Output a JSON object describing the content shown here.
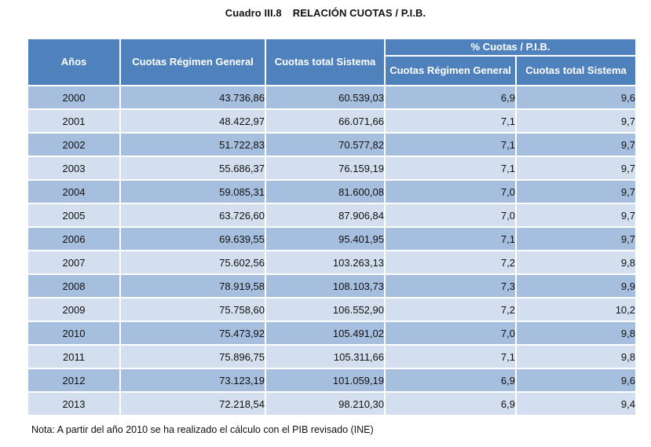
{
  "title": {
    "number": "Cuadro III.8",
    "text": "RELACIÓN CUOTAS / P.I.B."
  },
  "table": {
    "header": {
      "years": "Años",
      "cuotas_regimen_general": "Cuotas Régimen General",
      "cuotas_total_sistema": "Cuotas total Sistema",
      "group_pct_pib": "% Cuotas / P.I.B.",
      "pct_regimen_general": "Cuotas Régimen General",
      "pct_total_sistema": "Cuotas total Sistema"
    },
    "rows": [
      {
        "year": "2000",
        "crg": "43.736,86",
        "cts": "60.539,03",
        "prg": "6,9",
        "pts": "9,6"
      },
      {
        "year": "2001",
        "crg": "48.422,97",
        "cts": "66.071,66",
        "prg": "7,1",
        "pts": "9,7"
      },
      {
        "year": "2002",
        "crg": "51.722,83",
        "cts": "70.577,82",
        "prg": "7,1",
        "pts": "9,7"
      },
      {
        "year": "2003",
        "crg": "55.686,37",
        "cts": "76.159,19",
        "prg": "7,1",
        "pts": "9,7"
      },
      {
        "year": "2004",
        "crg": "59.085,31",
        "cts": "81.600,08",
        "prg": "7,0",
        "pts": "9,7"
      },
      {
        "year": "2005",
        "crg": "63.726,60",
        "cts": "87.906,84",
        "prg": "7,0",
        "pts": "9,7"
      },
      {
        "year": "2006",
        "crg": "69.639,55",
        "cts": "95.401,95",
        "prg": "7,1",
        "pts": "9,7"
      },
      {
        "year": "2007",
        "crg": "75.602,56",
        "cts": "103.263,13",
        "prg": "7,2",
        "pts": "9,8"
      },
      {
        "year": "2008",
        "crg": "78.919,58",
        "cts": "108.103,73",
        "prg": "7,3",
        "pts": "9,9"
      },
      {
        "year": "2009",
        "crg": "75.758,60",
        "cts": "106.552,90",
        "prg": "7,2",
        "pts": "10,2"
      },
      {
        "year": "2010",
        "crg": "75.473,92",
        "cts": "105.491,02",
        "prg": "7,0",
        "pts": "9,8"
      },
      {
        "year": "2011",
        "crg": "75.896,75",
        "cts": "105.311,66",
        "prg": "7,1",
        "pts": "9,8"
      },
      {
        "year": "2012",
        "crg": "73.123,19",
        "cts": "101.059,19",
        "prg": "6,9",
        "pts": "9,6"
      },
      {
        "year": "2013",
        "crg": "72.218,54",
        "cts": "98.210,30",
        "prg": "6,9",
        "pts": "9,4"
      }
    ]
  },
  "note": "Nota: A partir del año 2010 se ha realizado el cálculo con el PIB revisado (INE)",
  "colors": {
    "header_bg": "#4f81bd",
    "row_dark": "#a7bfde",
    "row_light": "#d3dfee"
  }
}
